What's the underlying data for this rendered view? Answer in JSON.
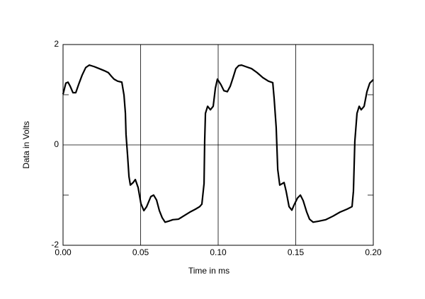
{
  "chart_data": {
    "type": "line",
    "xlabel": "Time in ms",
    "ylabel": "Data in Volts",
    "color": "#000000",
    "grid": true,
    "xlim": [
      0,
      0.2
    ],
    "xticks": [
      {
        "value": 0,
        "label": "0.00"
      },
      0.05,
      {
        "value": 0.1,
        "label": "0.10"
      },
      0.15,
      {
        "value": 0.2,
        "label": "0.20"
      }
    ],
    "ylim": [
      -2,
      2
    ],
    "yticks": [
      -2,
      0,
      2
    ],
    "yminorticks": [
      -1,
      1
    ],
    "x": [
      0,
      0.0018,
      0.0032,
      0.0046,
      0.0064,
      0.0082,
      0.01,
      0.0123,
      0.0146,
      0.0169,
      0.0201,
      0.0233,
      0.0265,
      0.0292,
      0.0311,
      0.0329,
      0.0352,
      0.0379,
      0.0393,
      0.0402,
      0.0406,
      0.0416,
      0.0425,
      0.0434,
      0.0452,
      0.0466,
      0.0484,
      0.0502,
      0.0521,
      0.0539,
      0.0566,
      0.0584,
      0.0603,
      0.0621,
      0.0639,
      0.0658,
      0.068,
      0.0708,
      0.0744,
      0.0781,
      0.0817,
      0.0854,
      0.0881,
      0.0895,
      0.0909,
      0.0913,
      0.0918,
      0.0932,
      0.095,
      0.0968,
      0.0982,
      0.0995,
      0.1018,
      0.1037,
      0.1059,
      0.1078,
      0.1096,
      0.1114,
      0.1132,
      0.1151,
      0.1178,
      0.1215,
      0.1251,
      0.1288,
      0.1324,
      0.1352,
      0.1361,
      0.1374,
      0.1384,
      0.1397,
      0.1425,
      0.1438,
      0.1457,
      0.1475,
      0.1489,
      0.1511,
      0.153,
      0.1548,
      0.1571,
      0.1589,
      0.1612,
      0.1648,
      0.1694,
      0.174,
      0.1785,
      0.1831,
      0.1863,
      0.1872,
      0.1881,
      0.1895,
      0.1909,
      0.1922,
      0.1941,
      0.1959,
      0.1977,
      0.2
    ],
    "values": [
      1.01,
      1.23,
      1.25,
      1.17,
      1.04,
      1.04,
      1.2,
      1.39,
      1.54,
      1.59,
      1.56,
      1.52,
      1.48,
      1.44,
      1.37,
      1.31,
      1.27,
      1.25,
      0.99,
      0.63,
      0.21,
      -0.21,
      -0.63,
      -0.8,
      -0.75,
      -0.69,
      -0.85,
      -1.17,
      -1.31,
      -1.23,
      -1.03,
      -1.0,
      -1.1,
      -1.31,
      -1.45,
      -1.54,
      -1.52,
      -1.49,
      -1.48,
      -1.41,
      -1.34,
      -1.28,
      -1.23,
      -1.18,
      -0.77,
      0.07,
      0.63,
      0.77,
      0.7,
      0.77,
      1.13,
      1.31,
      1.2,
      1.08,
      1.06,
      1.17,
      1.34,
      1.52,
      1.58,
      1.59,
      1.56,
      1.52,
      1.44,
      1.34,
      1.27,
      1.24,
      0.92,
      0.35,
      -0.49,
      -0.8,
      -0.75,
      -0.92,
      -1.23,
      -1.3,
      -1.2,
      -1.06,
      -1.0,
      -1.11,
      -1.34,
      -1.48,
      -1.54,
      -1.52,
      -1.49,
      -1.42,
      -1.34,
      -1.28,
      -1.23,
      -0.92,
      0.07,
      0.63,
      0.77,
      0.7,
      0.77,
      1.06,
      1.23,
      1.3
    ]
  }
}
